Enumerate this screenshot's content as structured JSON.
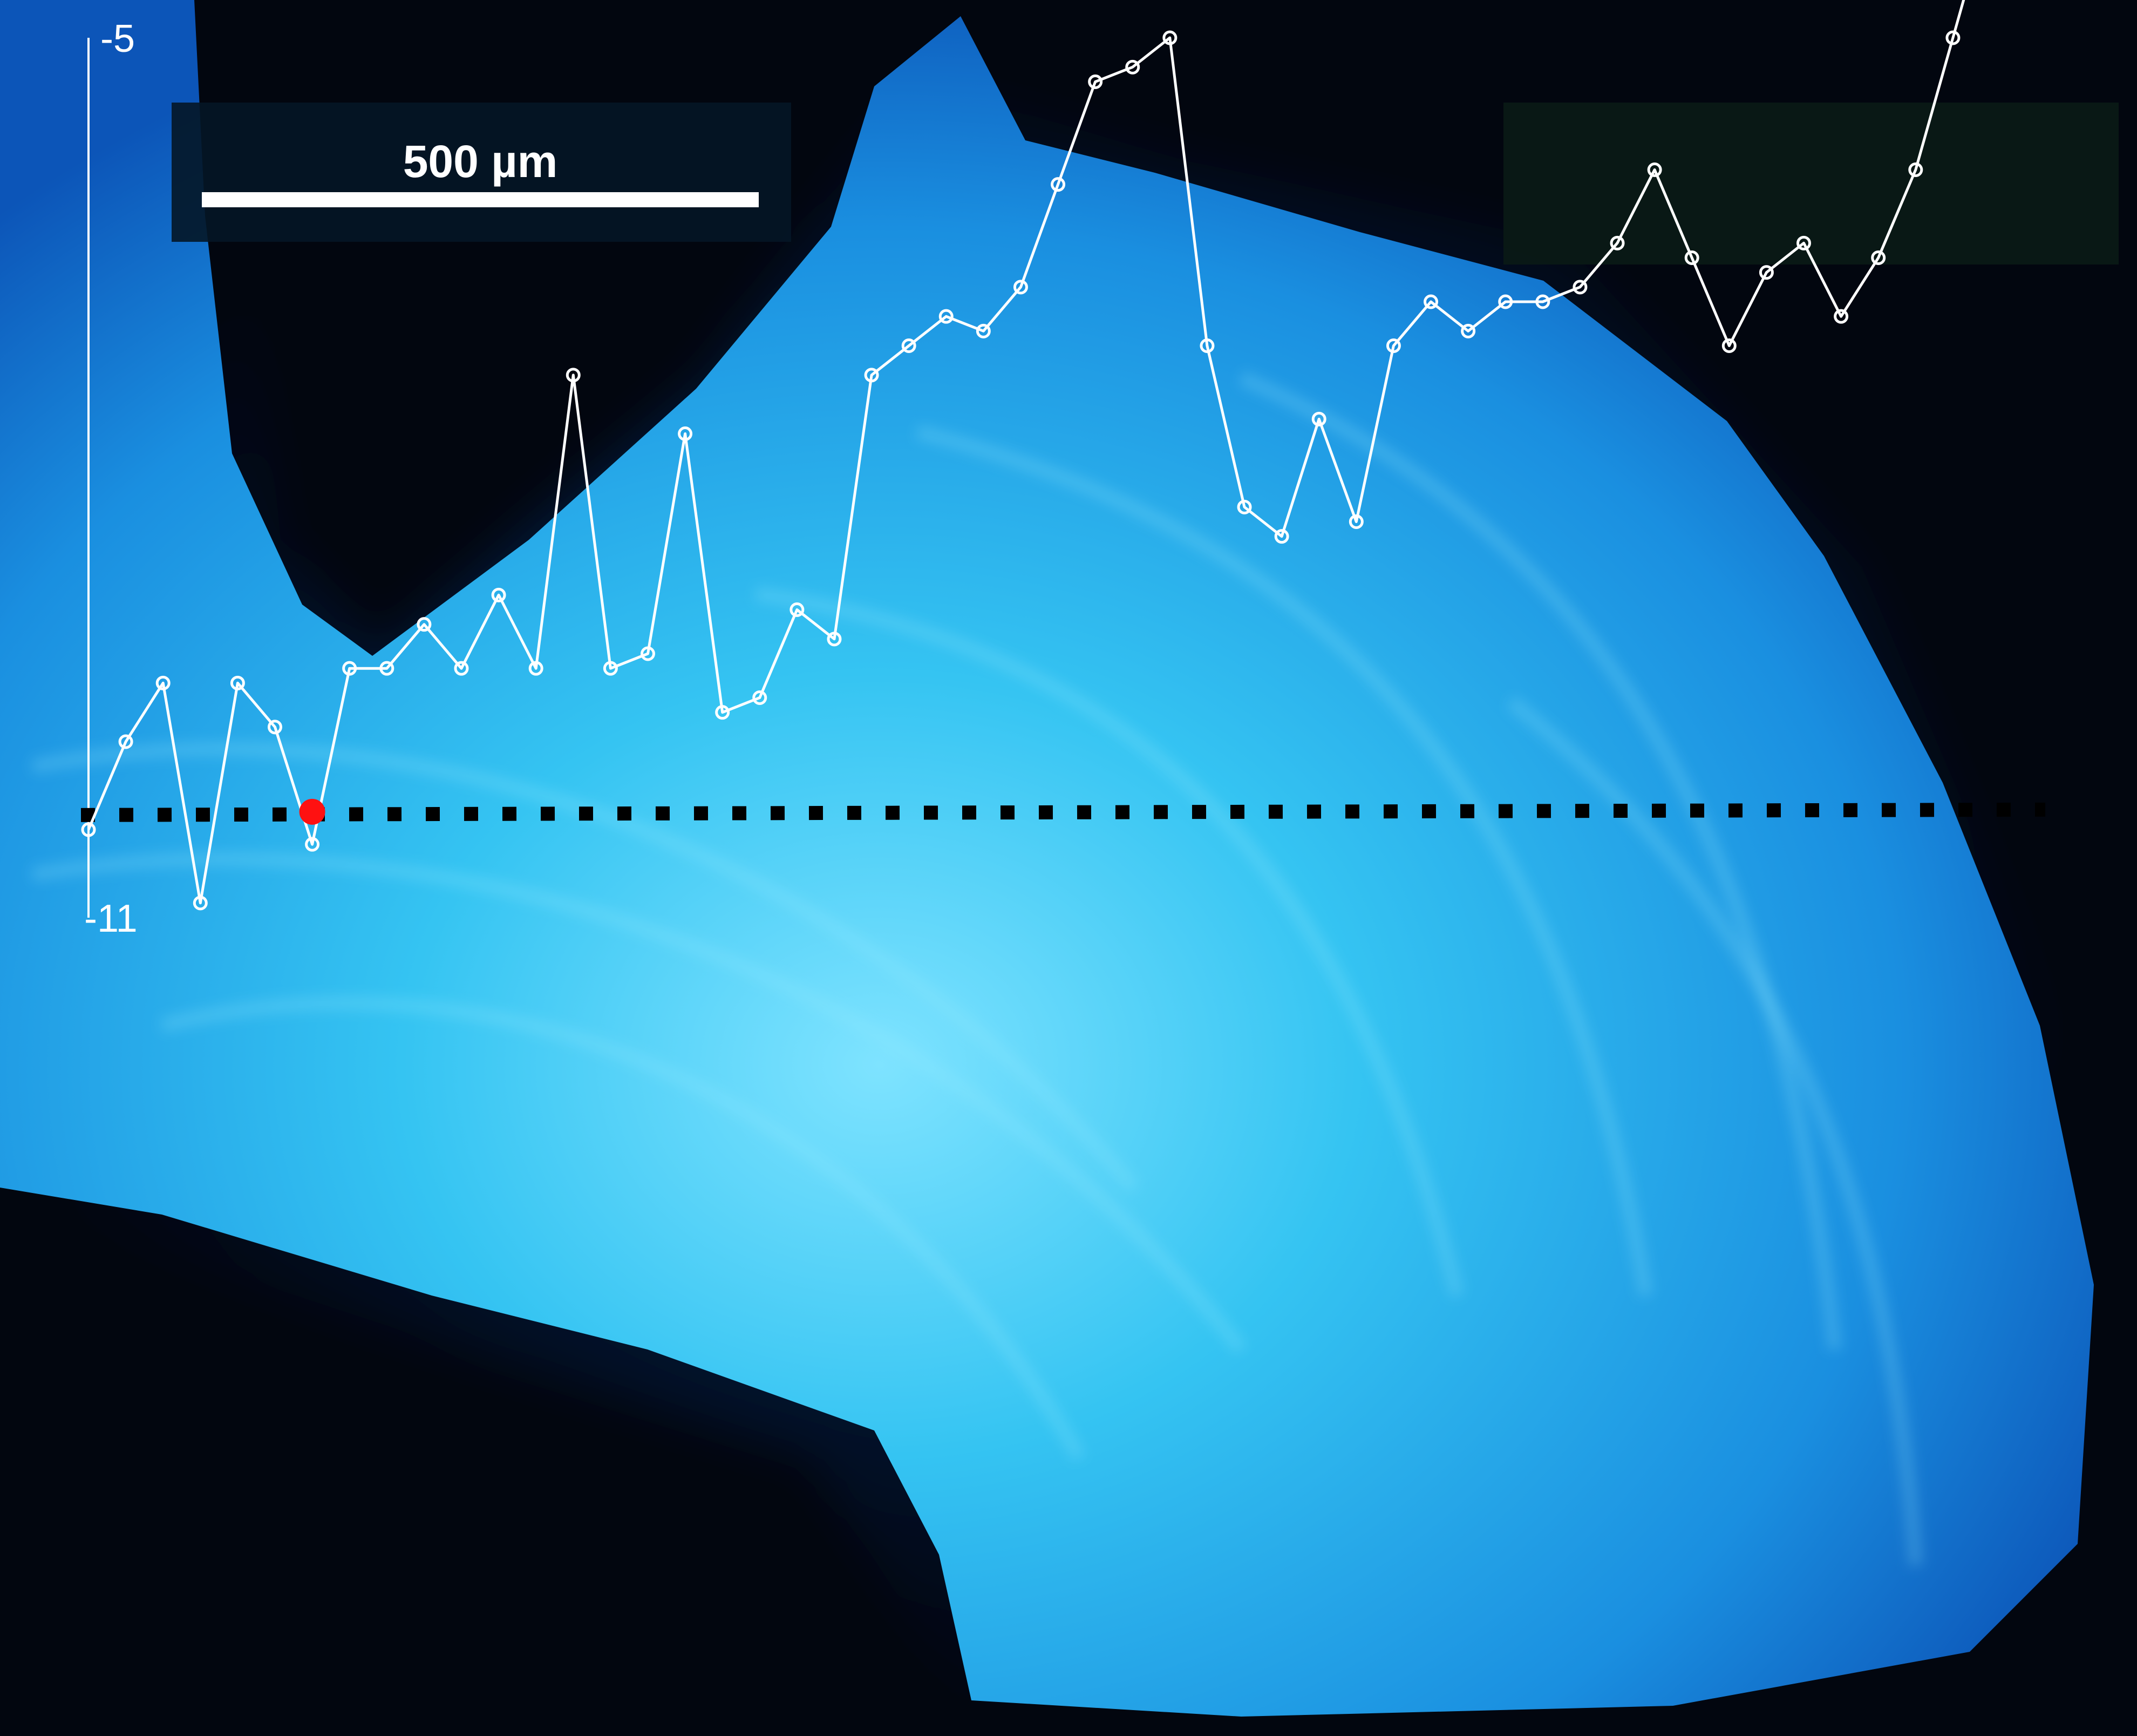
{
  "scale_bar": {
    "label": "500 µm"
  },
  "colors": {
    "background": "#02060f",
    "specimen_core": "#2fc6f2",
    "specimen_edge": "#0a4fb0",
    "series_line": "#ffffff",
    "baseline": "#000000",
    "marker": "#ff1111"
  },
  "chart_data": {
    "type": "line",
    "title": "",
    "xlabel": "",
    "ylabel": "",
    "y_ticks": [
      "-5",
      "-11"
    ],
    "ylim": [
      -11,
      -5
    ],
    "grid": false,
    "legend": "none",
    "x": [
      1,
      2,
      3,
      4,
      5,
      6,
      7,
      8,
      9,
      10,
      11,
      12,
      13,
      14,
      15,
      16,
      17,
      18,
      19,
      20,
      21,
      22,
      23,
      24,
      25,
      26,
      27,
      28,
      29,
      30,
      31,
      32,
      33,
      34,
      35,
      36,
      37,
      38,
      39,
      40,
      41,
      42,
      43,
      44,
      45,
      46,
      47,
      48,
      49,
      50,
      51,
      52
    ],
    "series": [
      {
        "values": [
          -10.4,
          -9.8,
          -9.4,
          -10.9,
          -9.4,
          -9.7,
          -10.5,
          -9.3,
          -9.3,
          -9.0,
          -9.3,
          -8.8,
          -9.3,
          -7.3,
          -9.3,
          -9.2,
          -7.7,
          -9.6,
          -9.5,
          -8.9,
          -9.1,
          -7.3,
          -7.1,
          -6.9,
          -7.0,
          -6.7,
          -6.0,
          -5.3,
          -5.2,
          -5.0,
          -7.1,
          -8.2,
          -8.4,
          -7.6,
          -8.3,
          -7.1,
          -6.8,
          -7.0,
          -6.8,
          -6.8,
          -6.7,
          -6.4,
          -5.9,
          -6.5,
          -7.1,
          -6.6,
          -6.4,
          -6.9,
          -6.5,
          -5.9,
          -5.0,
          -4.1
        ]
      }
    ],
    "baseline": {
      "y": -10.3
    },
    "highlight": {
      "x": 7,
      "y": -10.3
    }
  }
}
